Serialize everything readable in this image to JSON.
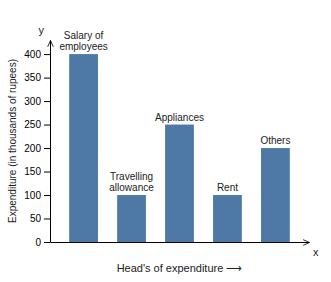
{
  "chart_data": {
    "type": "bar",
    "categories": [
      "Salary of\nemployees",
      "Travelling\nallowance",
      "Appliances",
      "Rent",
      "Others"
    ],
    "values": [
      400,
      100,
      250,
      100,
      200
    ],
    "ylabel": "Expenditure (in thousands of rupees)",
    "xlabel": "Head's of expenditure  ⟶",
    "annotations": [
      "y",
      "x"
    ],
    "ylim": [
      0,
      430
    ],
    "yticks": [
      0,
      50,
      100,
      150,
      200,
      250,
      300,
      350,
      400
    ],
    "grid": false,
    "tick_labels": "y"
  }
}
